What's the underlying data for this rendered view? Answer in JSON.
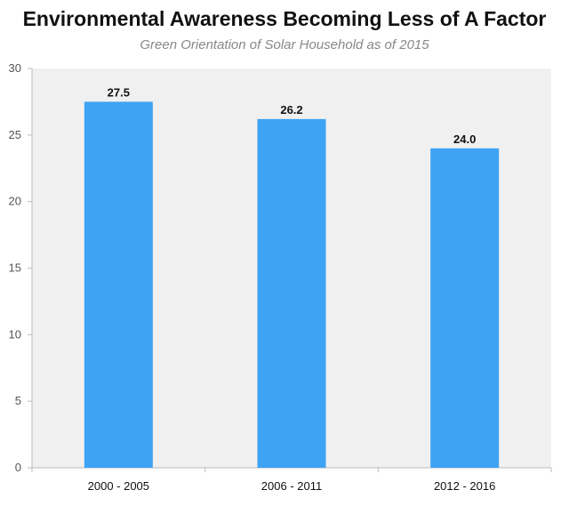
{
  "chart_data": {
    "type": "bar",
    "title": "Environmental Awareness Becoming Less of A Factor",
    "subtitle": "Green Orientation of Solar Household as of 2015",
    "categories": [
      "2000 - 2005",
      "2006 - 2011",
      "2012 - 2016"
    ],
    "values": [
      27.5,
      26.2,
      24.0
    ],
    "value_labels": [
      "27.5",
      "26.2",
      "24.0"
    ],
    "xlabel": "",
    "ylabel": "",
    "ylim": [
      0,
      30
    ],
    "yticks": [
      0,
      5,
      10,
      15,
      20,
      25,
      30
    ],
    "grid": false,
    "legend": "none",
    "bar_color": "#3fa3f3",
    "plot_background": "#f0f0f0"
  }
}
